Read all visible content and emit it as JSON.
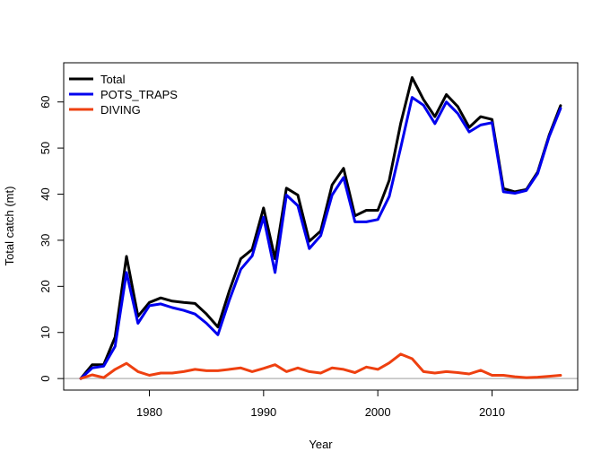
{
  "chart_data": {
    "type": "line",
    "title": "",
    "xlabel": "Year",
    "ylabel": "Total catch (mt)",
    "xlim": [
      1972.5,
      2017.5
    ],
    "ylim": [
      -2.5,
      68.5
    ],
    "xticks": [
      1980,
      1990,
      2000,
      2010
    ],
    "yticks": [
      0,
      10,
      20,
      30,
      40,
      50,
      60
    ],
    "reference_line": 0,
    "legend_position": "top-left",
    "x": [
      1974,
      1975,
      1976,
      1977,
      1978,
      1979,
      1980,
      1981,
      1982,
      1983,
      1984,
      1985,
      1986,
      1987,
      1988,
      1989,
      1990,
      1991,
      1992,
      1993,
      1994,
      1995,
      1996,
      1997,
      1998,
      1999,
      2000,
      2001,
      2002,
      2003,
      2004,
      2005,
      2006,
      2007,
      2008,
      2009,
      2010,
      2011,
      2012,
      2013,
      2014,
      2015,
      2016
    ],
    "series": [
      {
        "name": "Total",
        "color": "#000000",
        "values": [
          0,
          3,
          3,
          9,
          26.5,
          13.5,
          16.5,
          17.5,
          16.8,
          16.5,
          16.3,
          14,
          11.2,
          19,
          26,
          28,
          37,
          26,
          41.3,
          39.8,
          29.8,
          32,
          42,
          45.6,
          35.3,
          36.5,
          36.5,
          43,
          55.3,
          65.3,
          60.5,
          56.8,
          61.6,
          59,
          54.5,
          56.8,
          56.2,
          41.2,
          40.5,
          41,
          44.8,
          52.8,
          59.2
        ]
      },
      {
        "name": "POTS_TRAPS",
        "color": "#0000ee",
        "values": [
          0,
          2.3,
          2.7,
          7,
          23,
          12,
          15.8,
          16.2,
          15.4,
          14.8,
          14,
          12,
          9.5,
          17,
          23.7,
          26.6,
          35,
          23,
          39.8,
          37.5,
          28.2,
          31,
          39.8,
          43.6,
          34,
          34,
          34.5,
          39.5,
          50,
          61,
          59.3,
          55.3,
          60,
          57.5,
          53.5,
          55,
          55.5,
          40.5,
          40.2,
          40.8,
          44.5,
          52.5,
          58.6
        ]
      },
      {
        "name": "DIVING",
        "color": "#ee4010",
        "values": [
          0,
          0.8,
          0.2,
          2,
          3.3,
          1.5,
          0.7,
          1.2,
          1.2,
          1.5,
          2,
          1.7,
          1.7,
          2,
          2.3,
          1.5,
          2.2,
          3,
          1.5,
          2.3,
          1.5,
          1.2,
          2.3,
          2,
          1.3,
          2.5,
          2,
          3.4,
          5.3,
          4.3,
          1.5,
          1.2,
          1.5,
          1.3,
          1,
          1.8,
          0.7,
          0.7,
          0.4,
          0.2,
          0.3,
          0.5,
          0.7
        ]
      }
    ]
  }
}
